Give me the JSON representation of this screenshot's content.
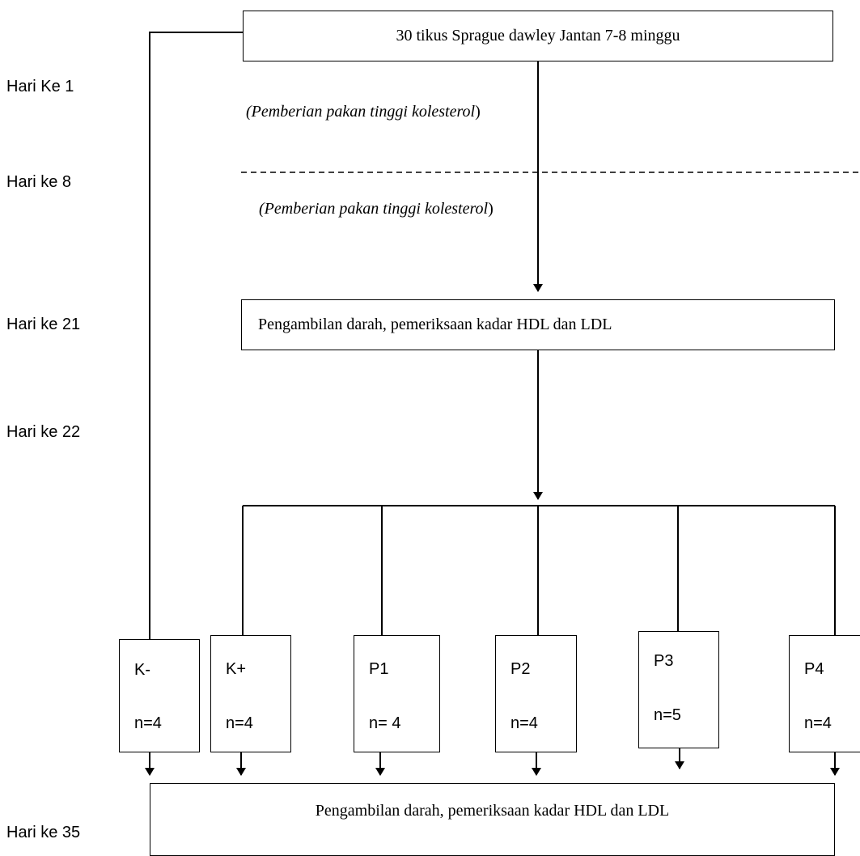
{
  "day_labels": [
    "Hari Ke 1",
    "Hari ke 8",
    "Hari ke 21",
    "Hari ke 22",
    "Hari ke 35"
  ],
  "top_box": "30 tikus Sprague dawley Jantan 7-8 minggu",
  "note_1": {
    "italic": "(Pemberian pakan tinggi kolesterol",
    "suffix": ")"
  },
  "note_2": {
    "italic": "(Pemberian pakan tinggi kolesterol",
    "suffix": ")"
  },
  "blood_sampling_1": "Pengambilan darah, pemeriksaan kadar HDL dan LDL",
  "groups": [
    {
      "name": "K-",
      "n": "n=4"
    },
    {
      "name": "K+",
      "n": "n=4"
    },
    {
      "name": "P1",
      "n": "n= 4"
    },
    {
      "name": "P2",
      "n": "n=4"
    },
    {
      "name": "P3",
      "n": "n=5"
    },
    {
      "name": "P4",
      "n": "n=4"
    }
  ],
  "blood_sampling_2": "Pengambilan darah, pemeriksaan kadar HDL dan LDL"
}
